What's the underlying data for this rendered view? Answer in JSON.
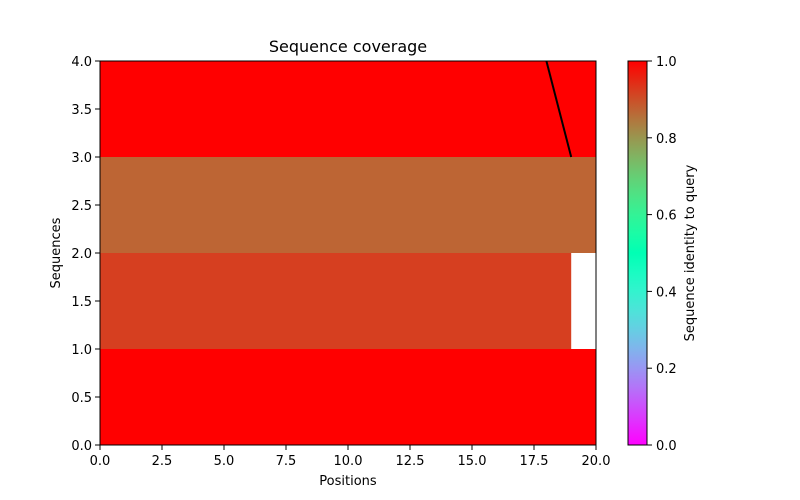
{
  "chart_data": {
    "type": "heatmap",
    "title": "Sequence coverage",
    "xlabel": "Positions",
    "ylabel": "Sequences",
    "xlim": [
      0,
      20
    ],
    "ylim": [
      0,
      4
    ],
    "xticks": [
      "0.0",
      "2.5",
      "5.0",
      "7.5",
      "10.0",
      "12.5",
      "15.0",
      "17.5",
      "20.0"
    ],
    "yticks": [
      "0.0",
      "0.5",
      "1.0",
      "1.5",
      "2.0",
      "2.5",
      "3.0",
      "3.5",
      "4.0"
    ],
    "rows": [
      {
        "y": [
          0,
          1
        ],
        "segments": [
          {
            "x": [
              0,
              20
            ],
            "identity": 1.0
          }
        ]
      },
      {
        "y": [
          1,
          2
        ],
        "segments": [
          {
            "x": [
              0,
              19
            ],
            "identity": 0.92
          },
          {
            "x": [
              19,
              20
            ],
            "identity": null
          }
        ]
      },
      {
        "y": [
          2,
          3
        ],
        "segments": [
          {
            "x": [
              0,
              20
            ],
            "identity": 0.87
          }
        ]
      },
      {
        "y": [
          3,
          4
        ],
        "segments": [
          {
            "x": [
              0,
              20
            ],
            "identity": 1.0
          }
        ]
      }
    ],
    "line": {
      "x": [
        18,
        19
      ],
      "y": [
        4,
        3
      ],
      "color": "#000000"
    },
    "grid": false,
    "colorbar": {
      "label": "Sequence identity to query",
      "colormap": "rainbow",
      "range": [
        0,
        1
      ],
      "ticks": [
        "0.0",
        "0.2",
        "0.4",
        "0.6",
        "0.8",
        "1.0"
      ]
    }
  }
}
